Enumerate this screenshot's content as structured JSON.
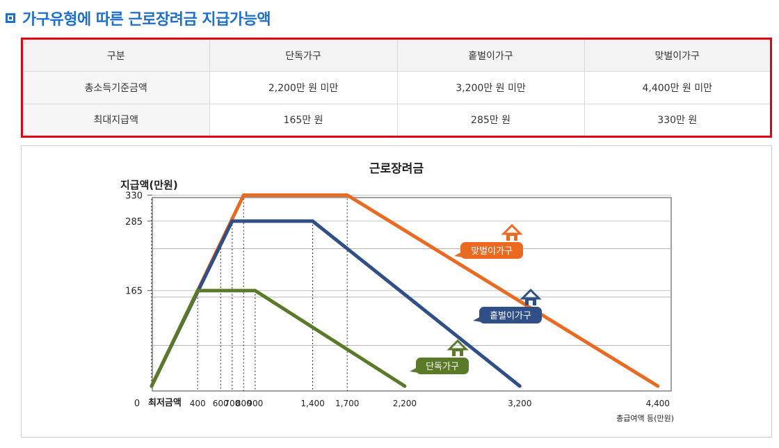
{
  "heading": {
    "icon": "square-bullet-icon",
    "title": "가구유형에 따른 근로장려금 지급가능액"
  },
  "table": {
    "headers": [
      "구분",
      "단독가구",
      "홑벌이가구",
      "맞벌이가구"
    ],
    "rows": [
      {
        "label": "총소득기준금액",
        "values": [
          "2,200만 원 미만",
          "3,200만 원 미만",
          "4,400만 원 미만"
        ]
      },
      {
        "label": "최대지급액",
        "values": [
          "165만 원",
          "285만 원",
          "330만 원"
        ]
      }
    ]
  },
  "chart_data": {
    "type": "line",
    "title": "근로장려금",
    "ylabel": "지급액(만원)",
    "xlabel": "총급여액 등(만원)",
    "xlim": [
      0,
      4400
    ],
    "ylim": [
      0,
      330
    ],
    "y_ticks": [
      330,
      285,
      165
    ],
    "y_tick_labels": [
      "330",
      "285",
      "165"
    ],
    "x_zero_label": "0",
    "x_origin_label": "최저금액",
    "x_ticks": [
      {
        "value": 400,
        "label": "400"
      },
      {
        "value": 600,
        "label": "600"
      },
      {
        "value": 700,
        "label": "700"
      },
      {
        "value": 800,
        "label": "800"
      },
      {
        "value": 900,
        "label": "900"
      },
      {
        "value": 1400,
        "label": "1,400"
      },
      {
        "value": 1700,
        "label": "1,700"
      },
      {
        "value": 2200,
        "label": "2,200"
      },
      {
        "value": 3200,
        "label": "3,200"
      },
      {
        "value": 4400,
        "label": "4,400"
      }
    ],
    "grid": true,
    "series": [
      {
        "name": "맞벌이가구",
        "color": "#ea6a22",
        "icon": "house-icon",
        "points": [
          [
            0,
            0
          ],
          [
            800,
            330
          ],
          [
            1700,
            330
          ],
          [
            4400,
            0
          ]
        ]
      },
      {
        "name": "홑벌이가구",
        "color": "#2f4f86",
        "icon": "house-icon",
        "points": [
          [
            0,
            0
          ],
          [
            700,
            285
          ],
          [
            1400,
            285
          ],
          [
            3200,
            0
          ]
        ]
      },
      {
        "name": "단독가구",
        "color": "#5a7a2a",
        "icon": "house-icon",
        "points": [
          [
            0,
            0
          ],
          [
            400,
            165
          ],
          [
            900,
            165
          ],
          [
            2200,
            0
          ]
        ]
      }
    ]
  }
}
